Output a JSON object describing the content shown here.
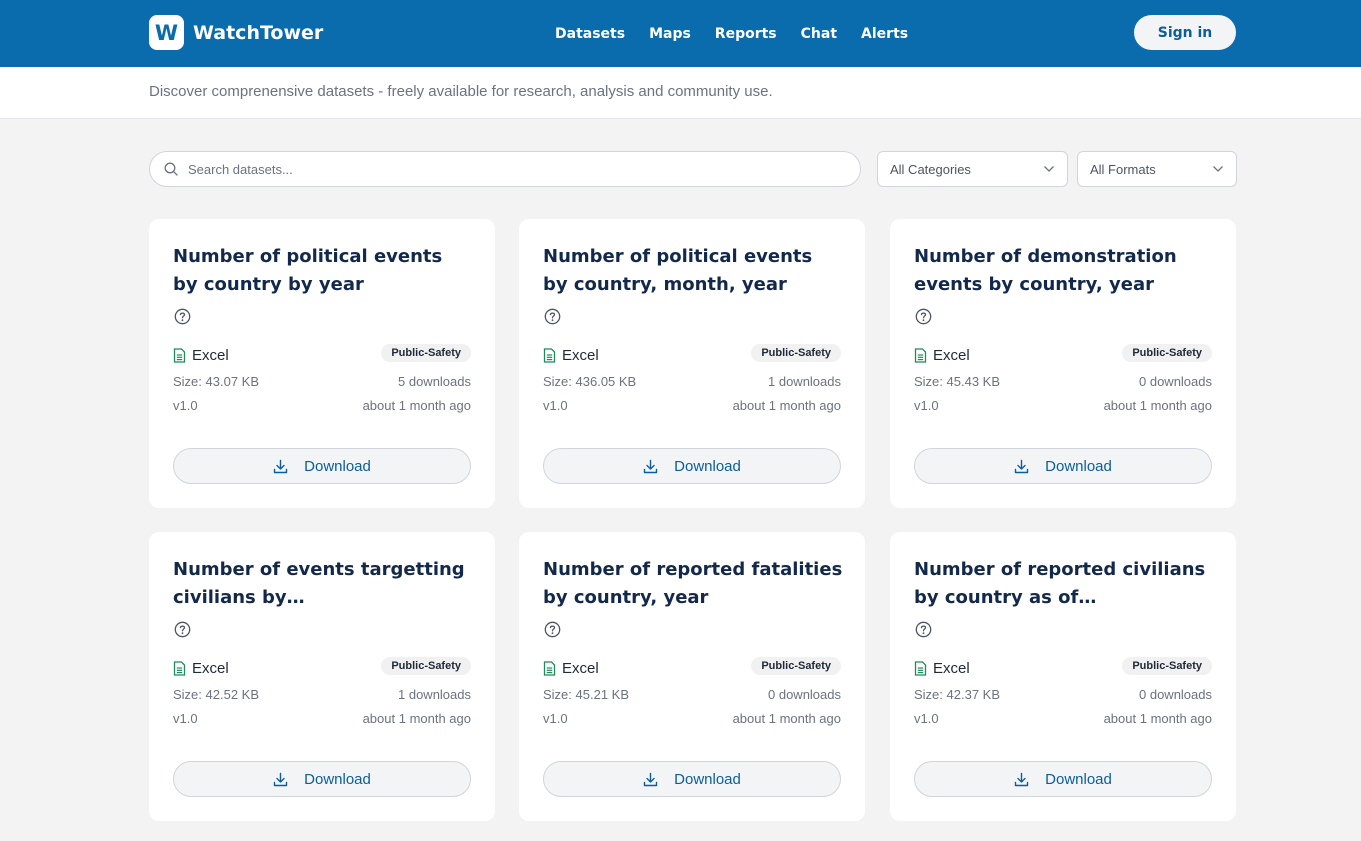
{
  "header": {
    "logo_letter": "W",
    "brand": "WatchTower",
    "nav": [
      "Datasets",
      "Maps",
      "Reports",
      "Chat",
      "Alerts"
    ],
    "signin": "Sign in"
  },
  "tagline": "Discover comprenensive datasets - freely available for research, analysis and community use.",
  "filters": {
    "search_placeholder": "Search datasets...",
    "category": "All Categories",
    "format": "All Formats"
  },
  "colors": {
    "brand": "#0a6cad",
    "title": "#13294b",
    "excel_icon": "#1f8a5b"
  },
  "datasets": [
    {
      "title": "Number of political events by country by year",
      "format": "Excel",
      "tag": "Public-Safety",
      "size": "Size: 43.07 KB",
      "downloads": "5 downloads",
      "version": "v1.0",
      "updated": "about 1 month ago",
      "action": "Download"
    },
    {
      "title": "Number of political events by country, month, year",
      "format": "Excel",
      "tag": "Public-Safety",
      "size": "Size: 436.05 KB",
      "downloads": "1 downloads",
      "version": "v1.0",
      "updated": "about 1 month ago",
      "action": "Download"
    },
    {
      "title": "Number of demonstration events by country, year",
      "format": "Excel",
      "tag": "Public-Safety",
      "size": "Size: 45.43 KB",
      "downloads": "0 downloads",
      "version": "v1.0",
      "updated": "about 1 month ago",
      "action": "Download"
    },
    {
      "title": "Number of events targetting civilians by…",
      "format": "Excel",
      "tag": "Public-Safety",
      "size": "Size: 42.52 KB",
      "downloads": "1 downloads",
      "version": "v1.0",
      "updated": "about 1 month ago",
      "action": "Download"
    },
    {
      "title": "Number of reported fatalities by country, year",
      "format": "Excel",
      "tag": "Public-Safety",
      "size": "Size: 45.21 KB",
      "downloads": "0 downloads",
      "version": "v1.0",
      "updated": "about 1 month ago",
      "action": "Download"
    },
    {
      "title": "Number of reported civilians by country as of…",
      "format": "Excel",
      "tag": "Public-Safety",
      "size": "Size: 42.37 KB",
      "downloads": "0 downloads",
      "version": "v1.0",
      "updated": "about 1 month ago",
      "action": "Download"
    }
  ]
}
